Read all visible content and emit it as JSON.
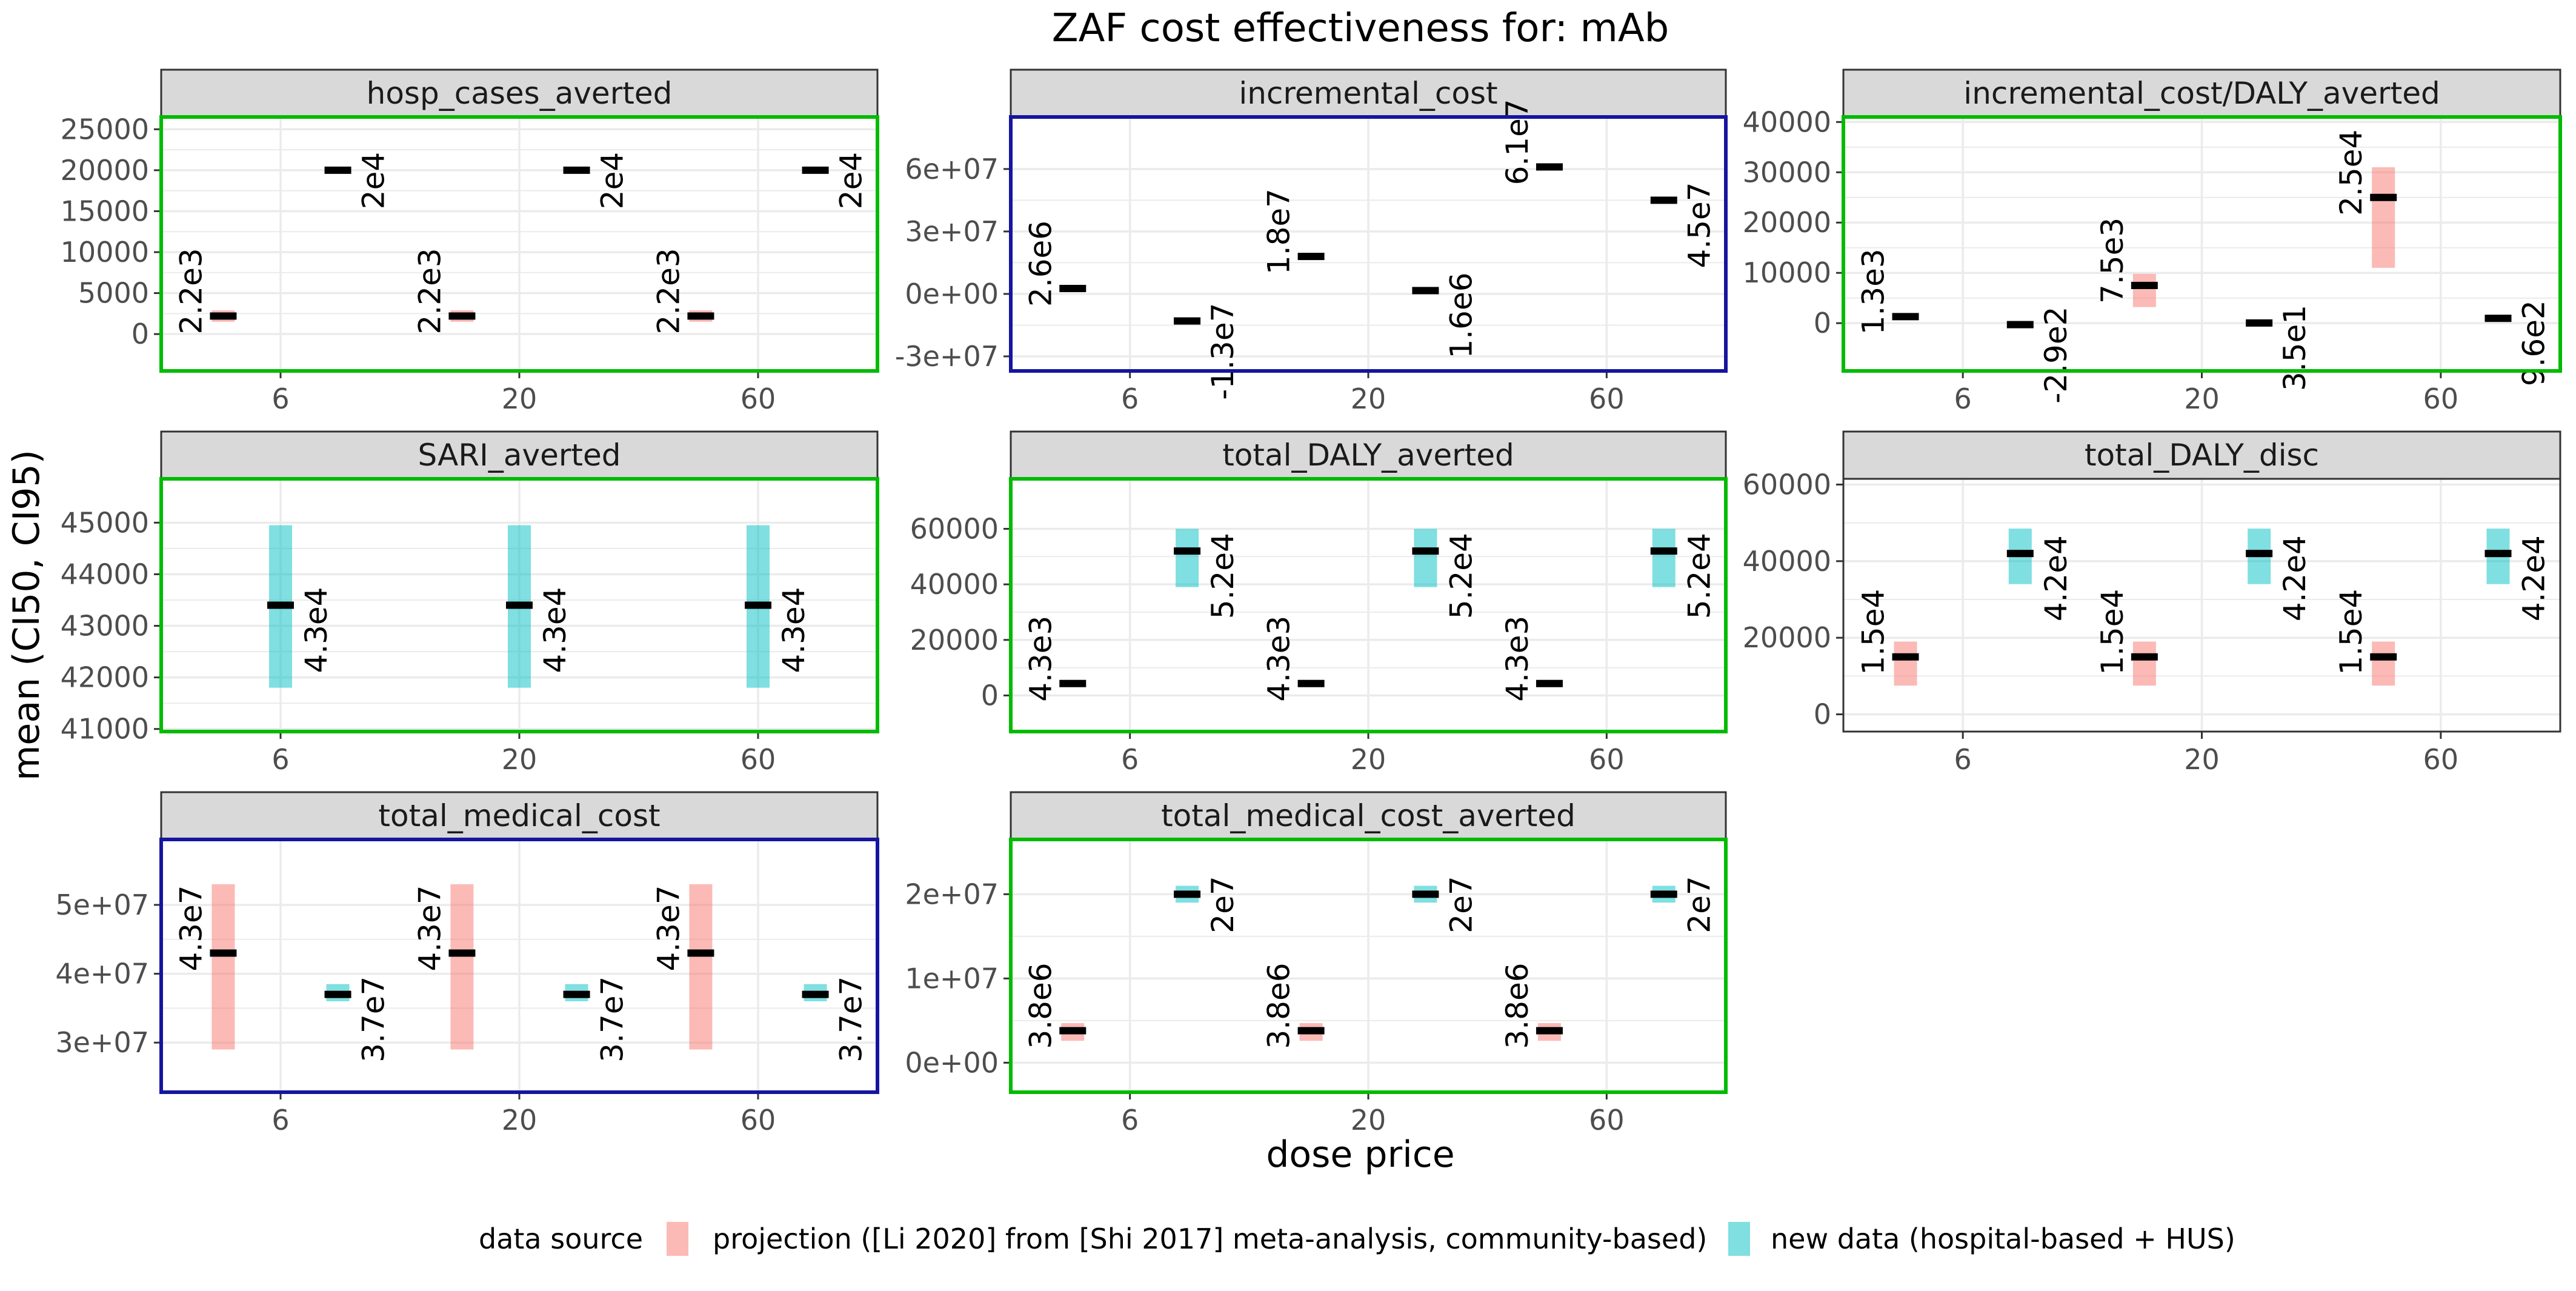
{
  "figure": {
    "title": "ZAF cost effectiveness for: mAb",
    "ylabel": "mean (CI50, CI95)",
    "xlabel": "dose price"
  },
  "legend": {
    "title": "data source",
    "items": [
      {
        "label": "projection ([Li 2020] from [Shi 2017] meta-analysis, community-based)",
        "color": "#F8766D"
      },
      {
        "label": "new data (hospital-based + HUS)",
        "color": "#00BFC4"
      }
    ]
  },
  "colors": {
    "projection": "#F8766D",
    "new_data": "#00BFC4",
    "border_green": "#00BB00",
    "border_blue": "#1515A0",
    "border_gray": "#333333",
    "strip_fill": "#D9D9D9",
    "grid": "#EBEBEB"
  },
  "chart_data": [
    {
      "type": "bar",
      "title": "hosp_cases_averted",
      "border": "green",
      "categories": [
        "6",
        "20",
        "60"
      ],
      "yticks": [
        "0",
        "5000",
        "10000",
        "15000",
        "20000",
        "25000"
      ],
      "ylim": [
        -4500,
        26500
      ],
      "series": [
        {
          "name": "projection ([Li 2020] from [Shi 2017] meta-analysis, community-based)",
          "values": [
            2200,
            2200,
            2200
          ],
          "ci": [
            [
              1500,
              2900
            ],
            [
              1500,
              2900
            ],
            [
              1500,
              2900
            ]
          ],
          "labels": [
            "2.2e3",
            "2.2e3",
            "2.2e3"
          ]
        },
        {
          "name": "new data (hospital-based + HUS)",
          "values": [
            20000,
            20000,
            20000
          ],
          "ci": [
            [
              19600,
              20400
            ],
            [
              19600,
              20400
            ],
            [
              19600,
              20400
            ]
          ],
          "labels": [
            "2e4",
            "2e4",
            "2e4"
          ]
        }
      ]
    },
    {
      "type": "bar",
      "title": "incremental_cost",
      "border": "blue",
      "categories": [
        "6",
        "20",
        "60"
      ],
      "yticks": [
        "-3e+07",
        "0e+00",
        "3e+07",
        "6e+07"
      ],
      "ylim": [
        -37000000,
        85000000
      ],
      "series": [
        {
          "name": "projection ([Li 2020] from [Shi 2017] meta-analysis, community-based)",
          "values": [
            2600000,
            18000000,
            61000000
          ],
          "ci": [
            [
              2600000,
              2600000
            ],
            [
              18000000,
              18000000
            ],
            [
              61000000,
              61000000
            ]
          ],
          "labels": [
            "2.6e6",
            "1.8e7",
            "6.1e7"
          ]
        },
        {
          "name": "new data (hospital-based + HUS)",
          "values": [
            -13000000,
            1600000,
            45000000
          ],
          "ci": [
            [
              -13000000,
              -13000000
            ],
            [
              1600000,
              1600000
            ],
            [
              45000000,
              45000000
            ]
          ],
          "labels": [
            "-1.3e7",
            "1.6e6",
            "4.5e7"
          ]
        }
      ]
    },
    {
      "type": "bar",
      "title": "incremental_cost/DALY_averted",
      "border": "green",
      "categories": [
        "6",
        "20",
        "60"
      ],
      "yticks": [
        "0",
        "10000",
        "20000",
        "30000",
        "40000"
      ],
      "ylim": [
        -9500,
        41000
      ],
      "series": [
        {
          "name": "projection ([Li 2020] from [Shi 2017] meta-analysis, community-based)",
          "values": [
            1300,
            7500,
            25000
          ],
          "ci": [
            [
              1300,
              1300
            ],
            [
              3200,
              9800
            ],
            [
              11000,
              31000
            ]
          ],
          "labels": [
            "1.3e3",
            "7.5e3",
            "2.5e4"
          ]
        },
        {
          "name": "new data (hospital-based + HUS)",
          "values": [
            -290,
            35,
            960
          ],
          "ci": [
            [
              -290,
              -290
            ],
            [
              35,
              35
            ],
            [
              960,
              960
            ]
          ],
          "labels": [
            "-2.9e2",
            "3.5e1",
            "9.6e2"
          ]
        }
      ]
    },
    {
      "type": "bar",
      "title": "SARI_averted",
      "border": "green",
      "categories": [
        "6",
        "20",
        "60"
      ],
      "yticks": [
        "41000",
        "42000",
        "43000",
        "44000",
        "45000"
      ],
      "ylim": [
        40950,
        45850
      ],
      "series": [
        {
          "name": "new data (hospital-based + HUS)",
          "values": [
            43400,
            43400,
            43400
          ],
          "ci": [
            [
              41800,
              44950
            ],
            [
              41800,
              44950
            ],
            [
              41800,
              44950
            ]
          ],
          "labels": [
            "4.3e4",
            "4.3e4",
            "4.3e4"
          ]
        }
      ]
    },
    {
      "type": "bar",
      "title": "total_DALY_averted",
      "border": "green",
      "categories": [
        "6",
        "20",
        "60"
      ],
      "yticks": [
        "0",
        "20000",
        "40000",
        "60000"
      ],
      "ylim": [
        -13000,
        78000
      ],
      "series": [
        {
          "name": "projection ([Li 2020] from [Shi 2017] meta-analysis, community-based)",
          "values": [
            4300,
            4300,
            4300
          ],
          "ci": [
            [
              3000,
              5600
            ],
            [
              3000,
              5600
            ],
            [
              3000,
              5600
            ]
          ],
          "labels": [
            "4.3e3",
            "4.3e3",
            "4.3e3"
          ]
        },
        {
          "name": "new data (hospital-based + HUS)",
          "values": [
            52000,
            52000,
            52000
          ],
          "ci": [
            [
              39000,
              60000
            ],
            [
              39000,
              60000
            ],
            [
              39000,
              60000
            ]
          ],
          "labels": [
            "5.2e4",
            "5.2e4",
            "5.2e4"
          ]
        }
      ]
    },
    {
      "type": "bar",
      "title": "total_DALY_disc",
      "border": "gray",
      "categories": [
        "6",
        "20",
        "60"
      ],
      "yticks": [
        "0",
        "20000",
        "40000",
        "60000"
      ],
      "ylim": [
        -4500,
        61500
      ],
      "series": [
        {
          "name": "projection ([Li 2020] from [Shi 2017] meta-analysis, community-based)",
          "values": [
            15000,
            15000,
            15000
          ],
          "ci": [
            [
              7500,
              19000
            ],
            [
              7500,
              19000
            ],
            [
              7500,
              19000
            ]
          ],
          "labels": [
            "1.5e4",
            "1.5e4",
            "1.5e4"
          ]
        },
        {
          "name": "new data (hospital-based + HUS)",
          "values": [
            42000,
            42000,
            42000
          ],
          "ci": [
            [
              34000,
              48500
            ],
            [
              34000,
              48500
            ],
            [
              34000,
              48500
            ]
          ],
          "labels": [
            "4.2e4",
            "4.2e4",
            "4.2e4"
          ]
        }
      ]
    },
    {
      "type": "bar",
      "title": "total_medical_cost",
      "border": "blue",
      "categories": [
        "6",
        "20",
        "60"
      ],
      "yticks": [
        "3e+07",
        "4e+07",
        "5e+07"
      ],
      "ylim": [
        22800000,
        59500000
      ],
      "series": [
        {
          "name": "projection ([Li 2020] from [Shi 2017] meta-analysis, community-based)",
          "values": [
            43000000,
            43000000,
            43000000
          ],
          "ci": [
            [
              29000000,
              53000000
            ],
            [
              29000000,
              53000000
            ],
            [
              29000000,
              53000000
            ]
          ],
          "labels": [
            "4.3e7",
            "4.3e7",
            "4.3e7"
          ]
        },
        {
          "name": "new data (hospital-based + HUS)",
          "values": [
            37000000,
            37000000,
            37000000
          ],
          "ci": [
            [
              36000000,
              38500000
            ],
            [
              36000000,
              38500000
            ],
            [
              36000000,
              38500000
            ]
          ],
          "labels": [
            "3.7e7",
            "3.7e7",
            "3.7e7"
          ]
        }
      ]
    },
    {
      "type": "bar",
      "title": "total_medical_cost_averted",
      "border": "green",
      "categories": [
        "6",
        "20",
        "60"
      ],
      "yticks": [
        "0e+00",
        "1e+07",
        "2e+07"
      ],
      "ylim": [
        -3500000,
        26500000
      ],
      "series": [
        {
          "name": "projection ([Li 2020] from [Shi 2017] meta-analysis, community-based)",
          "values": [
            3800000,
            3800000,
            3800000
          ],
          "ci": [
            [
              2600000,
              4700000
            ],
            [
              2600000,
              4700000
            ],
            [
              2600000,
              4700000
            ]
          ],
          "labels": [
            "3.8e6",
            "3.8e6",
            "3.8e6"
          ]
        },
        {
          "name": "new data (hospital-based + HUS)",
          "values": [
            20000000,
            20000000,
            20000000
          ],
          "ci": [
            [
              19000000,
              21000000
            ],
            [
              19000000,
              21000000
            ],
            [
              19000000,
              21000000
            ]
          ],
          "labels": [
            "2e7",
            "2e7",
            "2e7"
          ]
        }
      ]
    }
  ]
}
